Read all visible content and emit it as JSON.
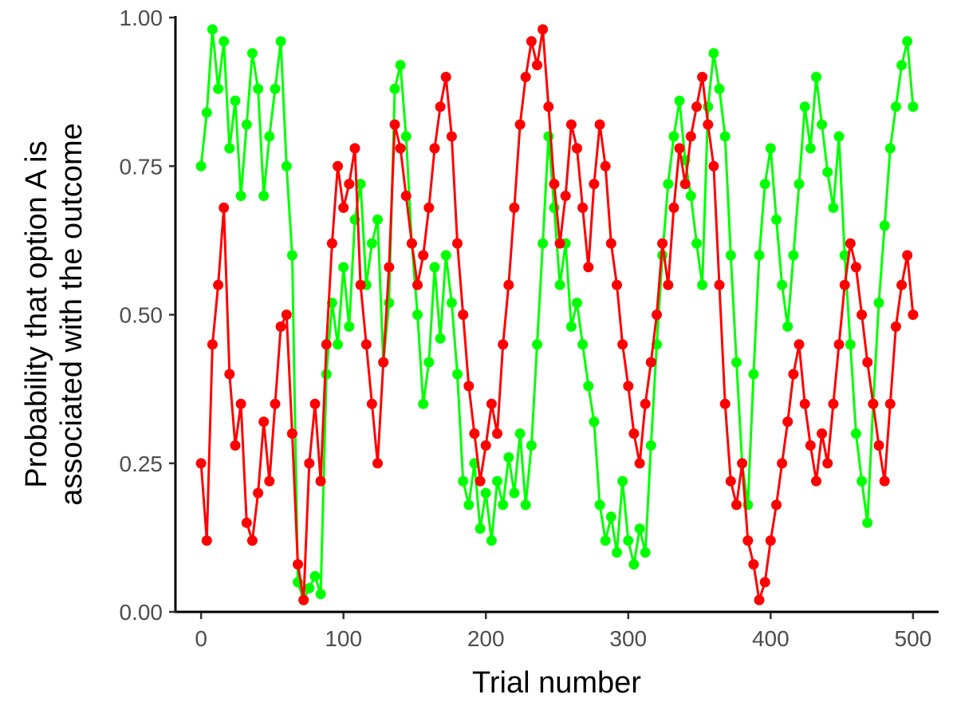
{
  "chart_data": {
    "type": "line",
    "title": "",
    "xlabel": "Trial number",
    "ylabel_lines": [
      "Probability that option A is",
      "associated with the outcome"
    ],
    "xlim": [
      -18,
      518
    ],
    "ylim": [
      0,
      1
    ],
    "x_ticks": [
      0,
      100,
      200,
      300,
      400,
      500
    ],
    "x_tick_labels": [
      "0",
      "100",
      "200",
      "300",
      "400",
      "500"
    ],
    "y_ticks": [
      0,
      0.25,
      0.5,
      0.75,
      1
    ],
    "y_tick_labels": [
      "0.00",
      "0.25",
      "0.50",
      "0.75",
      "1.00"
    ],
    "grid": false,
    "legend": "none",
    "marker": "circle",
    "series": [
      {
        "color": "#00FF00",
        "x": [
          0,
          4,
          8,
          12,
          16,
          20,
          24,
          28,
          32,
          36,
          40,
          44,
          48,
          52,
          56,
          60,
          64,
          68,
          72,
          76,
          80,
          84,
          88,
          92,
          96,
          100,
          104,
          108,
          112,
          116,
          120,
          124,
          128,
          132,
          136,
          140,
          144,
          148,
          152,
          156,
          160,
          164,
          168,
          172,
          176,
          180,
          184,
          188,
          192,
          196,
          200,
          204,
          208,
          212,
          216,
          220,
          224,
          228,
          232,
          236,
          240,
          244,
          248,
          252,
          256,
          260,
          264,
          268,
          272,
          276,
          280,
          284,
          288,
          292,
          296,
          300,
          304,
          308,
          312,
          316,
          320,
          324,
          328,
          332,
          336,
          340,
          344,
          348,
          352,
          356,
          360,
          364,
          368,
          372,
          376,
          380,
          384,
          388,
          392,
          396,
          400,
          404,
          408,
          412,
          416,
          420,
          424,
          428,
          432,
          436,
          440,
          444,
          448,
          452,
          456,
          460,
          464,
          468,
          472,
          476,
          480,
          484,
          488,
          492,
          496,
          500
        ],
        "y": [
          0.75,
          0.84,
          0.98,
          0.88,
          0.96,
          0.78,
          0.86,
          0.7,
          0.82,
          0.94,
          0.88,
          0.7,
          0.8,
          0.88,
          0.96,
          0.75,
          0.6,
          0.05,
          0.02,
          0.04,
          0.06,
          0.03,
          0.4,
          0.52,
          0.45,
          0.58,
          0.48,
          0.66,
          0.72,
          0.55,
          0.62,
          0.66,
          0.42,
          0.52,
          0.88,
          0.92,
          0.8,
          0.62,
          0.5,
          0.35,
          0.42,
          0.58,
          0.46,
          0.6,
          0.52,
          0.4,
          0.22,
          0.18,
          0.25,
          0.14,
          0.2,
          0.12,
          0.22,
          0.18,
          0.26,
          0.2,
          0.3,
          0.18,
          0.28,
          0.45,
          0.62,
          0.8,
          0.68,
          0.55,
          0.62,
          0.48,
          0.52,
          0.45,
          0.38,
          0.32,
          0.18,
          0.12,
          0.16,
          0.1,
          0.22,
          0.12,
          0.08,
          0.14,
          0.1,
          0.28,
          0.45,
          0.6,
          0.72,
          0.8,
          0.86,
          0.76,
          0.7,
          0.62,
          0.55,
          0.85,
          0.94,
          0.88,
          0.8,
          0.6,
          0.42,
          0.25,
          0.18,
          0.4,
          0.6,
          0.72,
          0.78,
          0.66,
          0.55,
          0.48,
          0.6,
          0.72,
          0.85,
          0.78,
          0.9,
          0.82,
          0.74,
          0.68,
          0.8,
          0.6,
          0.45,
          0.3,
          0.22,
          0.15,
          0.35,
          0.52,
          0.65,
          0.78,
          0.85,
          0.92,
          0.96,
          0.85
        ]
      },
      {
        "color": "#FF0000",
        "x": [
          0,
          4,
          8,
          12,
          16,
          20,
          24,
          28,
          32,
          36,
          40,
          44,
          48,
          52,
          56,
          60,
          64,
          68,
          72,
          76,
          80,
          84,
          88,
          92,
          96,
          100,
          104,
          108,
          112,
          116,
          120,
          124,
          128,
          132,
          136,
          140,
          144,
          148,
          152,
          156,
          160,
          164,
          168,
          172,
          176,
          180,
          184,
          188,
          192,
          196,
          200,
          204,
          208,
          212,
          216,
          220,
          224,
          228,
          232,
          236,
          240,
          244,
          248,
          252,
          256,
          260,
          264,
          268,
          272,
          276,
          280,
          284,
          288,
          292,
          296,
          300,
          304,
          308,
          312,
          316,
          320,
          324,
          328,
          332,
          336,
          340,
          344,
          348,
          352,
          356,
          360,
          364,
          368,
          372,
          376,
          380,
          384,
          388,
          392,
          396,
          400,
          404,
          408,
          412,
          416,
          420,
          424,
          428,
          432,
          436,
          440,
          444,
          448,
          452,
          456,
          460,
          464,
          468,
          472,
          476,
          480,
          484,
          488,
          492,
          496,
          500
        ],
        "y": [
          0.25,
          0.12,
          0.45,
          0.55,
          0.68,
          0.4,
          0.28,
          0.35,
          0.15,
          0.12,
          0.2,
          0.32,
          0.22,
          0.35,
          0.48,
          0.5,
          0.3,
          0.08,
          0.02,
          0.25,
          0.35,
          0.22,
          0.45,
          0.62,
          0.75,
          0.68,
          0.72,
          0.78,
          0.55,
          0.45,
          0.35,
          0.25,
          0.42,
          0.58,
          0.82,
          0.78,
          0.7,
          0.62,
          0.55,
          0.6,
          0.68,
          0.78,
          0.85,
          0.9,
          0.8,
          0.62,
          0.5,
          0.38,
          0.3,
          0.22,
          0.28,
          0.35,
          0.3,
          0.45,
          0.55,
          0.68,
          0.82,
          0.9,
          0.96,
          0.92,
          0.98,
          0.85,
          0.72,
          0.62,
          0.7,
          0.82,
          0.78,
          0.68,
          0.58,
          0.72,
          0.82,
          0.75,
          0.62,
          0.55,
          0.45,
          0.38,
          0.3,
          0.25,
          0.35,
          0.42,
          0.5,
          0.62,
          0.55,
          0.68,
          0.78,
          0.72,
          0.8,
          0.85,
          0.9,
          0.82,
          0.75,
          0.55,
          0.35,
          0.22,
          0.18,
          0.25,
          0.12,
          0.08,
          0.02,
          0.05,
          0.12,
          0.18,
          0.25,
          0.32,
          0.4,
          0.45,
          0.35,
          0.28,
          0.22,
          0.3,
          0.25,
          0.35,
          0.45,
          0.55,
          0.62,
          0.58,
          0.5,
          0.42,
          0.35,
          0.28,
          0.22,
          0.35,
          0.48,
          0.55,
          0.6,
          0.5
        ]
      }
    ]
  }
}
